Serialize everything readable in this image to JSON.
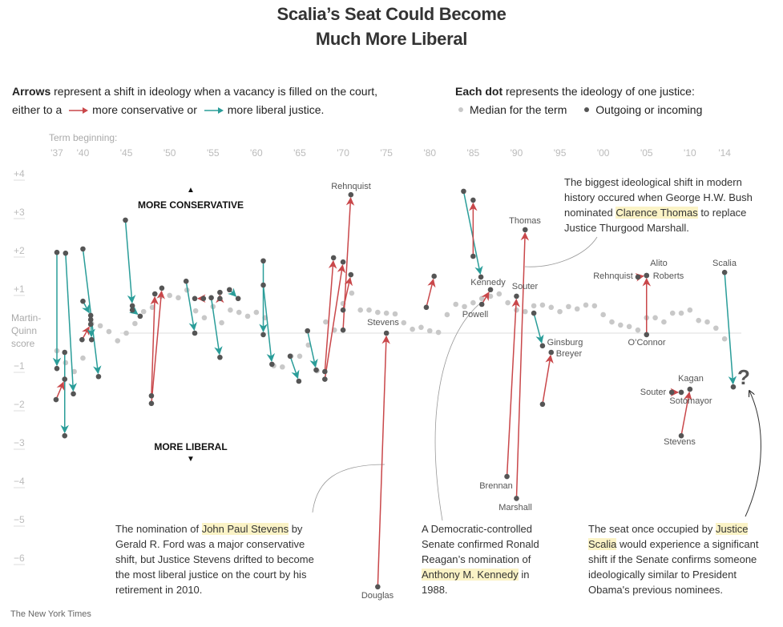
{
  "title": [
    "Scalia’s Seat Could Become",
    "Much More Liberal"
  ],
  "legend": {
    "arrows_bold": "Arrows",
    "arrows_text": " represent a shift in ideology when a vacancy is filled on the court,",
    "either": "either to a",
    "conservative": "more conservative or",
    "liberal": "more liberal justice.",
    "dots_bold": "Each dot",
    "dots_text": " represents the ideology of one justice:",
    "median": "Median for the term",
    "outgoing": "Outgoing or incoming"
  },
  "colors": {
    "conservative": "#c9474a",
    "liberal": "#2a9d99",
    "justice_dot": "#555555",
    "median_dot": "#c8c8c8",
    "highlight": "#fbf3c6"
  },
  "chart_data": {
    "type": "scatter",
    "xlabel": "Term beginning:",
    "ylabel": "Martin-Quinn score",
    "x_ticks": [
      {
        "year": 1937,
        "label": "'37"
      },
      {
        "year": 1940,
        "label": "'40"
      },
      {
        "year": 1945,
        "label": "'45"
      },
      {
        "year": 1950,
        "label": "'50"
      },
      {
        "year": 1955,
        "label": "'55"
      },
      {
        "year": 1960,
        "label": "'60"
      },
      {
        "year": 1965,
        "label": "'65"
      },
      {
        "year": 1970,
        "label": "'70"
      },
      {
        "year": 1975,
        "label": "'75"
      },
      {
        "year": 1980,
        "label": "'80"
      },
      {
        "year": 1985,
        "label": "'85"
      },
      {
        "year": 1990,
        "label": "'90"
      },
      {
        "year": 1995,
        "label": "'95"
      },
      {
        "year": 2000,
        "label": "'00"
      },
      {
        "year": 2005,
        "label": "'05"
      },
      {
        "year": 2010,
        "label": "'10"
      },
      {
        "year": 2014,
        "label": "'14"
      }
    ],
    "y_ticks": [
      {
        "value": 4,
        "label": "+4"
      },
      {
        "value": 3,
        "label": "+3"
      },
      {
        "value": 2,
        "label": "+2"
      },
      {
        "value": 1,
        "label": "+1"
      },
      {
        "value": -1,
        "label": "−1"
      },
      {
        "value": -2,
        "label": "−2"
      },
      {
        "value": -3,
        "label": "−3"
      },
      {
        "value": -4,
        "label": "−4"
      },
      {
        "value": -5,
        "label": "−5"
      },
      {
        "value": -6,
        "label": "−6"
      }
    ],
    "xlim": [
      1937,
      2015
    ],
    "ylim": [
      -6.8,
      4.2
    ],
    "direction_labels": {
      "up": "MORE CONSERVATIVE",
      "down": "MORE LIBERAL"
    },
    "median": {
      "name": "Median for the term",
      "points": [
        [
          1937,
          -0.46
        ],
        [
          1938,
          -0.77
        ],
        [
          1939,
          -1.0
        ],
        [
          1940,
          -0.65
        ],
        [
          1941,
          0.25
        ],
        [
          1942,
          0.19
        ],
        [
          1943,
          0.04
        ],
        [
          1944,
          -0.2
        ],
        [
          1945,
          0.0
        ],
        [
          1946,
          0.25
        ],
        [
          1947,
          0.56
        ],
        [
          1948,
          0.67
        ],
        [
          1949,
          0.96
        ],
        [
          1950,
          0.98
        ],
        [
          1951,
          0.92
        ],
        [
          1952,
          1.12
        ],
        [
          1953,
          0.58
        ],
        [
          1954,
          0.4
        ],
        [
          1955,
          0.69
        ],
        [
          1956,
          0.27
        ],
        [
          1957,
          0.6
        ],
        [
          1958,
          0.54
        ],
        [
          1959,
          0.44
        ],
        [
          1960,
          0.54
        ],
        [
          1961,
          0.4
        ],
        [
          1962,
          -0.85
        ],
        [
          1963,
          -0.88
        ],
        [
          1964,
          -0.6
        ],
        [
          1965,
          -0.6
        ],
        [
          1966,
          -0.31
        ],
        [
          1967,
          -0.98
        ],
        [
          1968,
          0.29
        ],
        [
          1969,
          0.08
        ],
        [
          1970,
          0.77
        ],
        [
          1971,
          1.04
        ],
        [
          1972,
          0.6
        ],
        [
          1973,
          0.6
        ],
        [
          1974,
          0.54
        ],
        [
          1975,
          0.52
        ],
        [
          1976,
          0.5
        ],
        [
          1977,
          0.27
        ],
        [
          1978,
          0.1
        ],
        [
          1979,
          0.15
        ],
        [
          1980,
          0.06
        ],
        [
          1981,
          0.02
        ],
        [
          1982,
          0.48
        ],
        [
          1983,
          0.75
        ],
        [
          1984,
          0.69
        ],
        [
          1985,
          0.79
        ],
        [
          1986,
          0.9
        ],
        [
          1987,
          0.96
        ],
        [
          1988,
          1.02
        ],
        [
          1989,
          0.79
        ],
        [
          1990,
          0.6
        ],
        [
          1991,
          0.56
        ],
        [
          1992,
          0.71
        ],
        [
          1993,
          0.73
        ],
        [
          1994,
          0.67
        ],
        [
          1995,
          0.56
        ],
        [
          1996,
          0.69
        ],
        [
          1997,
          0.63
        ],
        [
          1998,
          0.73
        ],
        [
          1999,
          0.71
        ],
        [
          2000,
          0.48
        ],
        [
          2001,
          0.29
        ],
        [
          2002,
          0.21
        ],
        [
          2003,
          0.17
        ],
        [
          2004,
          0.08
        ],
        [
          2005,
          0.4
        ],
        [
          2006,
          0.4
        ],
        [
          2007,
          0.29
        ],
        [
          2008,
          0.52
        ],
        [
          2009,
          0.52
        ],
        [
          2010,
          0.6
        ],
        [
          2011,
          0.33
        ],
        [
          2012,
          0.29
        ],
        [
          2013,
          0.13
        ],
        [
          2014,
          -0.15
        ]
      ]
    },
    "arrows": [
      {
        "from": [
          1937.0,
          2.1
        ],
        "to": [
          1937.0,
          -0.92
        ],
        "shift": "liberal"
      },
      {
        "from": [
          1938.0,
          2.08
        ],
        "to": [
          1938.9,
          -1.58
        ],
        "shift": "liberal"
      },
      {
        "from": [
          1937.9,
          -0.5
        ],
        "to": [
          1937.9,
          -2.67
        ],
        "shift": "liberal"
      },
      {
        "from": [
          1936.9,
          -1.73
        ],
        "to": [
          1937.9,
          -1.2
        ],
        "shift": "conservative"
      },
      {
        "from": [
          1940.0,
          2.19
        ],
        "to": [
          1941.8,
          -1.13
        ],
        "shift": "liberal"
      },
      {
        "from": [
          1940.0,
          0.83
        ],
        "to": [
          1940.9,
          0.46
        ],
        "shift": "liberal"
      },
      {
        "from": [
          1939.9,
          -0.17
        ],
        "to": [
          1940.9,
          0.23
        ],
        "shift": "conservative"
      },
      {
        "from": [
          1940.9,
          0.35
        ],
        "to": [
          1941.0,
          -0.17
        ],
        "shift": "liberal"
      },
      {
        "from": [
          1944.9,
          2.94
        ],
        "to": [
          1945.7,
          0.71
        ],
        "shift": "liberal"
      },
      {
        "from": [
          1945.7,
          0.6
        ],
        "to": [
          1946.6,
          0.44
        ],
        "shift": "liberal"
      },
      {
        "from": [
          1947.9,
          -1.63
        ],
        "to": [
          1948.3,
          1.02
        ],
        "shift": "conservative"
      },
      {
        "from": [
          1947.9,
          -1.83
        ],
        "to": [
          1949.1,
          1.17
        ],
        "shift": "conservative"
      },
      {
        "from": [
          1951.9,
          1.35
        ],
        "to": [
          1952.9,
          0.0
        ],
        "shift": "liberal"
      },
      {
        "from": [
          1953.9,
          0.9
        ],
        "to": [
          1952.9,
          0.9
        ],
        "shift": "conservative"
      },
      {
        "from": [
          1955.8,
          0.9
        ],
        "to": [
          1955.8,
          1.06
        ],
        "shift": "conservative"
      },
      {
        "from": [
          1954.8,
          0.92
        ],
        "to": [
          1955.8,
          -0.63
        ],
        "shift": "liberal"
      },
      {
        "from": [
          1956.9,
          1.13
        ],
        "to": [
          1957.9,
          0.9
        ],
        "shift": "liberal"
      },
      {
        "from": [
          1960.8,
          1.88
        ],
        "to": [
          1960.8,
          -0.04
        ],
        "shift": "liberal"
      },
      {
        "from": [
          1960.8,
          1.25
        ],
        "to": [
          1961.8,
          -0.81
        ],
        "shift": "liberal"
      },
      {
        "from": [
          1963.9,
          -0.6
        ],
        "to": [
          1964.9,
          -1.25
        ],
        "shift": "liberal"
      },
      {
        "from": [
          1965.9,
          0.06
        ],
        "to": [
          1966.9,
          -0.96
        ],
        "shift": "liberal"
      },
      {
        "from": [
          1967.9,
          -1.0
        ],
        "to": [
          1968.9,
          1.96
        ],
        "shift": "conservative"
      },
      {
        "from": [
          1967.9,
          -1.2
        ],
        "to": [
          1970.0,
          1.85
        ],
        "shift": "conservative"
      },
      {
        "from": [
          1970.0,
          0.6
        ],
        "to": [
          1970.9,
          1.52
        ],
        "shift": "conservative"
      },
      {
        "from": [
          1970.0,
          0.08
        ],
        "to": [
          1970.9,
          3.6
        ],
        "shift": "conservative"
      },
      {
        "from": [
          1974.0,
          -6.6
        ],
        "to": [
          1975.0,
          0.0
        ],
        "shift": "conservative"
      },
      {
        "from": [
          1979.6,
          0.67
        ],
        "to": [
          1980.5,
          1.48
        ],
        "shift": "conservative"
      },
      {
        "from": [
          1983.9,
          3.69
        ],
        "to": [
          1985.9,
          1.46
        ],
        "shift": "liberal"
      },
      {
        "from": [
          1985.0,
          2.0
        ],
        "to": [
          1985.0,
          3.46
        ],
        "shift": "conservative"
      },
      {
        "from": [
          1986.0,
          0.75
        ],
        "to": [
          1987.0,
          1.13
        ],
        "shift": "conservative"
      },
      {
        "from": [
          1988.9,
          -3.73
        ],
        "to": [
          1990.0,
          0.96
        ],
        "shift": "conservative"
      },
      {
        "from": [
          1990.0,
          -4.3
        ],
        "to": [
          1991.0,
          2.69
        ],
        "shift": "conservative"
      },
      {
        "from": [
          1992.0,
          0.52
        ],
        "to": [
          1993.0,
          -0.33
        ],
        "shift": "liberal"
      },
      {
        "from": [
          1993.0,
          -1.85
        ],
        "to": [
          1994.0,
          -0.5
        ],
        "shift": "conservative"
      },
      {
        "from": [
          2005.0,
          -0.04
        ],
        "to": [
          2005.0,
          1.5
        ],
        "shift": "conservative"
      },
      {
        "from": [
          2004.0,
          1.46
        ],
        "to": [
          2005.0,
          1.5
        ],
        "shift": "conservative"
      },
      {
        "from": [
          2009.0,
          -2.67
        ],
        "to": [
          2010.0,
          -1.46
        ],
        "shift": "conservative"
      },
      {
        "from": [
          2007.9,
          -1.54
        ],
        "to": [
          2009.0,
          -1.54
        ],
        "shift": "conservative"
      },
      {
        "from": [
          2014.0,
          1.58
        ],
        "to": [
          2015.0,
          -1.4
        ],
        "shift": "liberal"
      }
    ],
    "justice_labels": [
      "Rehnquist",
      "Stevens",
      "Douglas",
      "Kennedy",
      "Powell",
      "Souter",
      "Thomas",
      "Brennan",
      "Marshall",
      "Ginsburg",
      "Breyer",
      "Rehnquist",
      "Alito",
      "Roberts",
      "O’Connor",
      "Scalia",
      "Kagan",
      "Souter",
      "Sotomayor",
      "Stevens"
    ],
    "unknown_marker": "?"
  },
  "annotations": {
    "thomas": {
      "pre": "The biggest ideological shift in modern history occured when George H.W. Bush nominated ",
      "highlight": "Clarence Thomas",
      "post": " to replace Justice Thurgood Marshall."
    },
    "stevens": {
      "pre": "The nomination of ",
      "highlight": "John Paul Stevens",
      "post": " by Gerald R. Ford was a major conservative shift, but Justice Stevens drifted to become the most liberal justice on the court by his retirement in 2010."
    },
    "kennedy": {
      "pre": "A Democratic-controlled Senate confirmed Ronald Reagan’s nomination of ",
      "highlight": "Anthony M. Kennedy",
      "post": " in 1988."
    },
    "scalia": {
      "pre": "The seat once occupied by ",
      "highlight": "Justice Scalia",
      "post": " would experience a significant shift if the Senate confirms someone ideologically similar to President Obama's previous nominees."
    }
  },
  "credit": "The New York Times"
}
